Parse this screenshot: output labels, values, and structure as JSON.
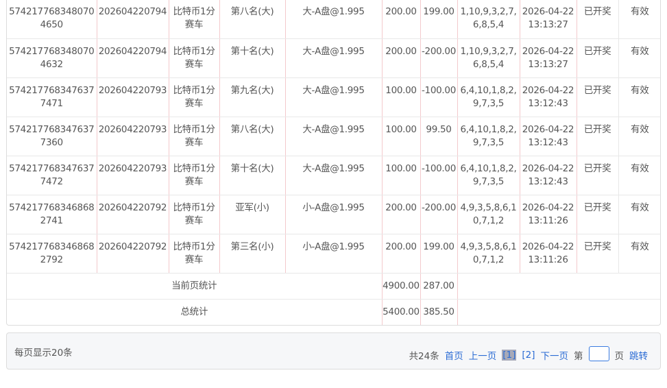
{
  "rows": [
    [
      "5742177683480704650",
      "202604220794",
      "比特币1分赛车",
      "第八名(大)",
      "大-A盘@1.995",
      "200.00",
      "199.00",
      "1,10,9,3,2,7,6,8,5,4",
      "2026-04-22 13:13:27",
      "已开奖",
      "有效"
    ],
    [
      "5742177683480704632",
      "202604220794",
      "比特币1分赛车",
      "第十名(大)",
      "大-A盘@1.995",
      "200.00",
      "-200.00",
      "1,10,9,3,2,7,6,8,5,4",
      "2026-04-22 13:13:27",
      "已开奖",
      "有效"
    ],
    [
      "5742177683476377471",
      "202604220793",
      "比特币1分赛车",
      "第九名(大)",
      "大-A盘@1.995",
      "100.00",
      "-100.00",
      "6,4,10,1,8,2,9,7,3,5",
      "2026-04-22 13:12:43",
      "已开奖",
      "有效"
    ],
    [
      "5742177683476377360",
      "202604220793",
      "比特币1分赛车",
      "第八名(大)",
      "大-A盘@1.995",
      "100.00",
      "99.50",
      "6,4,10,1,8,2,9,7,3,5",
      "2026-04-22 13:12:43",
      "已开奖",
      "有效"
    ],
    [
      "5742177683476377472",
      "202604220793",
      "比特币1分赛车",
      "第十名(大)",
      "大-A盘@1.995",
      "100.00",
      "-100.00",
      "6,4,10,1,8,2,9,7,3,5",
      "2026-04-22 13:12:43",
      "已开奖",
      "有效"
    ],
    [
      "5742177683468682741",
      "202604220792",
      "比特币1分赛车",
      "亚军(小)",
      "小-A盘@1.995",
      "200.00",
      "-200.00",
      "4,9,3,5,8,6,10,7,1,2",
      "2026-04-22 13:11:26",
      "已开奖",
      "有效"
    ],
    [
      "5742177683468682792",
      "202604220792",
      "比特币1分赛车",
      "第三名(小)",
      "小-A盘@1.995",
      "200.00",
      "199.00",
      "4,9,3,5,8,6,10,7,1,2",
      "2026-04-22 13:11:26",
      "已开奖",
      "有效"
    ]
  ],
  "summary": [
    {
      "label": "当前页统计",
      "amount": "4900.00",
      "result": "287.00"
    },
    {
      "label": "总统计",
      "amount": "5400.00",
      "result": "385.50"
    }
  ],
  "pager": {
    "per_page": "每页显示20条",
    "total": "共24条",
    "first": "首页",
    "prev": "上一页",
    "page1": "[1]",
    "page2": "[2]",
    "next": "下一页",
    "goto_prefix": "第",
    "goto_value": "",
    "goto_suffix": "页",
    "jump": "跳转"
  }
}
